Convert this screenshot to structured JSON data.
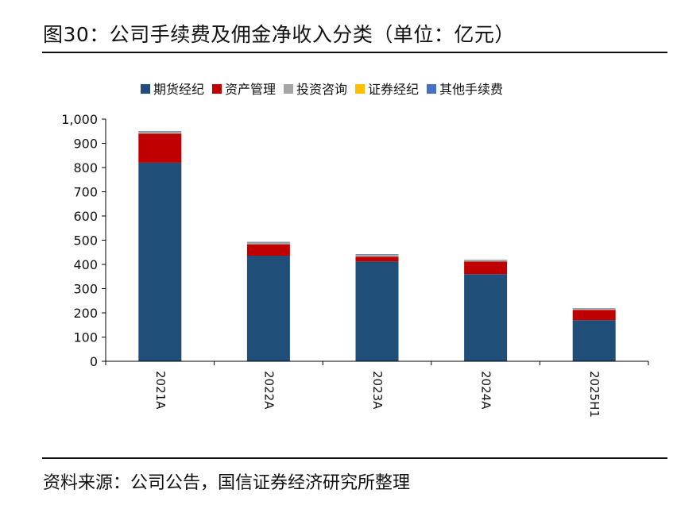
{
  "title": "图30：公司手续费及佣金净收入分类（单位：亿元）",
  "source": "资料来源：公司公告，国信证券经济研究所整理",
  "colors": {
    "期货经纪": "#1f4e79",
    "资产管理": "#c00000",
    "投资咨询": "#a5a5a5",
    "证券经纪": "#ffc000",
    "其他手续费": "#4472c4"
  },
  "chart_data": {
    "type": "bar",
    "stacked": true,
    "categories": [
      "2021A",
      "2022A",
      "2023A",
      "2024A",
      "2025H1"
    ],
    "series": [
      {
        "name": "期货经纪",
        "values": [
          820,
          436,
          412,
          360,
          170
        ]
      },
      {
        "name": "资产管理",
        "values": [
          120,
          47,
          20,
          52,
          42
        ]
      },
      {
        "name": "投资咨询",
        "values": [
          6,
          6,
          6,
          4,
          4
        ]
      },
      {
        "name": "证券经纪",
        "values": [
          1,
          1,
          1,
          1,
          1
        ]
      },
      {
        "name": "其他手续费",
        "values": [
          3,
          3,
          3,
          2,
          2
        ]
      }
    ],
    "ylim": [
      0,
      1000
    ],
    "yticks": [
      0,
      100,
      200,
      300,
      400,
      500,
      600,
      700,
      800,
      900,
      1000
    ],
    "ytick_labels": [
      "0",
      "100",
      "200",
      "300",
      "400",
      "500",
      "600",
      "700",
      "800",
      "900",
      "1,000"
    ],
    "xlabel": "",
    "ylabel": "",
    "grid": false,
    "legend_position": "top"
  }
}
